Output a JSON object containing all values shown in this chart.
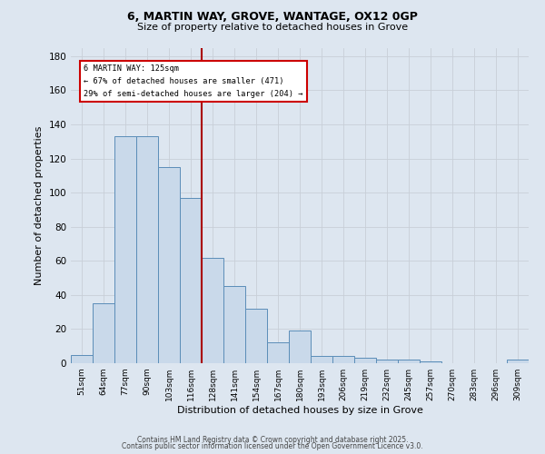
{
  "title1": "6, MARTIN WAY, GROVE, WANTAGE, OX12 0GP",
  "title2": "Size of property relative to detached houses in Grove",
  "xlabel": "Distribution of detached houses by size in Grove",
  "ylabel": "Number of detached properties",
  "categories": [
    "51sqm",
    "64sqm",
    "77sqm",
    "90sqm",
    "103sqm",
    "116sqm",
    "128sqm",
    "141sqm",
    "154sqm",
    "167sqm",
    "180sqm",
    "193sqm",
    "206sqm",
    "219sqm",
    "232sqm",
    "245sqm",
    "257sqm",
    "270sqm",
    "283sqm",
    "296sqm",
    "309sqm"
  ],
  "values": [
    5,
    35,
    133,
    133,
    115,
    97,
    62,
    45,
    32,
    12,
    19,
    4,
    4,
    3,
    2,
    2,
    1,
    0,
    0,
    0,
    2
  ],
  "bar_color": "#c9d9ea",
  "bar_edge_color": "#5b8db8",
  "vline_color": "#aa0000",
  "annotation_line1": "6 MARTIN WAY: 125sqm",
  "annotation_line2": "← 67% of detached houses are smaller (471)",
  "annotation_line3": "29% of semi-detached houses are larger (204) →",
  "annotation_box_color": "#ffffff",
  "annotation_box_edge": "#cc0000",
  "footer1": "Contains HM Land Registry data © Crown copyright and database right 2025.",
  "footer2": "Contains public sector information licensed under the Open Government Licence v3.0.",
  "ylim": [
    0,
    185
  ],
  "yticks": [
    0,
    20,
    40,
    60,
    80,
    100,
    120,
    140,
    160,
    180
  ],
  "grid_color": "#c8cfd8",
  "bg_color": "#dde6f0"
}
